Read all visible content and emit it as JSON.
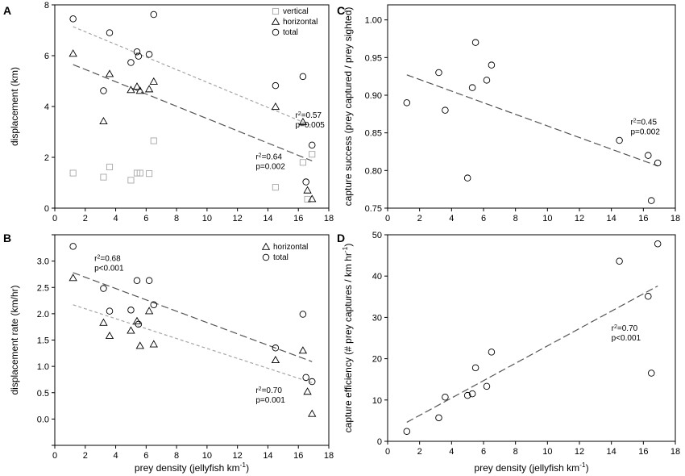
{
  "chart_data": [
    {
      "panel": "A",
      "type": "scatter",
      "xlabel": "",
      "ylabel": "displacement (km)",
      "xlim": [
        0,
        18
      ],
      "ylim": [
        0,
        8
      ],
      "xticks": [
        0,
        2,
        4,
        6,
        8,
        10,
        12,
        14,
        16,
        18
      ],
      "yticks": [
        0,
        2,
        4,
        6,
        8
      ],
      "legend": {
        "position": "top-right",
        "entries": [
          "vertical",
          "horizontal",
          "total"
        ]
      },
      "series": [
        {
          "name": "vertical",
          "marker": "square",
          "color": "#a6a6a6",
          "points": [
            [
              1.2,
              1.38
            ],
            [
              3.2,
              1.22
            ],
            [
              3.6,
              1.62
            ],
            [
              5.0,
              1.1
            ],
            [
              5.4,
              1.38
            ],
            [
              5.6,
              1.38
            ],
            [
              6.2,
              1.36
            ],
            [
              6.5,
              2.65
            ],
            [
              14.5,
              0.82
            ],
            [
              16.3,
              1.8
            ],
            [
              16.6,
              0.35
            ],
            [
              16.9,
              2.12
            ]
          ]
        },
        {
          "name": "horizontal",
          "marker": "triangle",
          "color": "#000000",
          "points": [
            [
              1.2,
              6.08
            ],
            [
              3.2,
              3.42
            ],
            [
              3.6,
              5.28
            ],
            [
              5.0,
              4.65
            ],
            [
              5.4,
              4.78
            ],
            [
              5.6,
              4.62
            ],
            [
              6.2,
              4.68
            ],
            [
              6.5,
              4.98
            ],
            [
              14.5,
              3.99
            ],
            [
              16.3,
              3.39
            ],
            [
              16.6,
              0.7
            ],
            [
              16.9,
              0.36
            ]
          ]
        },
        {
          "name": "total",
          "marker": "circle",
          "color": "#000000",
          "points": [
            [
              1.2,
              7.45
            ],
            [
              3.2,
              4.62
            ],
            [
              3.6,
              6.9
            ],
            [
              5.0,
              5.73
            ],
            [
              5.4,
              6.15
            ],
            [
              5.5,
              5.98
            ],
            [
              6.2,
              6.05
            ],
            [
              6.5,
              7.62
            ],
            [
              14.5,
              4.82
            ],
            [
              16.3,
              5.18
            ],
            [
              16.5,
              1.03
            ],
            [
              16.9,
              2.48
            ]
          ]
        }
      ],
      "fits": [
        {
          "series": "total",
          "x": [
            1.2,
            16.9
          ],
          "y": [
            7.14,
            3.24
          ],
          "color": "#a6a6a6",
          "dash": "4,3"
        },
        {
          "series": "horizontal",
          "x": [
            1.2,
            16.9
          ],
          "y": [
            5.65,
            1.86
          ],
          "color": "#555555",
          "dash": "9,4"
        }
      ],
      "annotations": [
        {
          "id": "a-fit-total",
          "at": [
            15.8,
            3.55
          ],
          "lines": [
            {
              "pre": "r",
              "sup": "2",
              "post": "=0.57"
            },
            {
              "pre": "p=0.005"
            }
          ]
        },
        {
          "id": "a-fit-horizontal",
          "at": [
            13.2,
            1.92
          ],
          "lines": [
            {
              "pre": "r",
              "sup": "2",
              "post": "=0.64"
            },
            {
              "pre": "p=0.002"
            }
          ]
        }
      ]
    },
    {
      "panel": "B",
      "type": "scatter",
      "xlabel": "prey density (jellyfish km-1)",
      "ylabel": "displacement rate (km/hr)",
      "xlim": [
        0,
        18
      ],
      "ylim": [
        -0.5,
        3.5
      ],
      "xticks": [
        0,
        2,
        4,
        6,
        8,
        10,
        12,
        14,
        16,
        18
      ],
      "yticks": [
        -0.5,
        0.0,
        0.5,
        1.0,
        1.5,
        2.0,
        2.5,
        3.0,
        3.5
      ],
      "yticklabels": [
        "",
        "0.0",
        "0.5",
        "1.0",
        "1.5",
        "2.0",
        "2.5",
        "3.0",
        ""
      ],
      "legend": {
        "position": "top-right",
        "entries": [
          "horizontal",
          "total"
        ]
      },
      "series": [
        {
          "name": "horizontal",
          "marker": "triangle",
          "color": "#000000",
          "points": [
            [
              1.2,
              2.68
            ],
            [
              3.2,
              1.83
            ],
            [
              3.6,
              1.58
            ],
            [
              5.0,
              1.68
            ],
            [
              5.4,
              1.86
            ],
            [
              5.6,
              1.39
            ],
            [
              6.2,
              2.05
            ],
            [
              6.5,
              1.42
            ],
            [
              14.5,
              1.12
            ],
            [
              16.3,
              1.3
            ],
            [
              16.6,
              0.52
            ],
            [
              16.9,
              0.1
            ]
          ]
        },
        {
          "name": "total",
          "marker": "circle",
          "color": "#000000",
          "points": [
            [
              1.2,
              3.28
            ],
            [
              3.2,
              2.48
            ],
            [
              3.6,
              2.05
            ],
            [
              5.0,
              2.07
            ],
            [
              5.4,
              2.63
            ],
            [
              5.5,
              1.8
            ],
            [
              6.2,
              2.63
            ],
            [
              6.5,
              2.17
            ],
            [
              14.5,
              1.35
            ],
            [
              16.3,
              1.99
            ],
            [
              16.5,
              0.79
            ],
            [
              16.9,
              0.71
            ]
          ]
        }
      ],
      "fits": [
        {
          "series": "total",
          "x": [
            1.2,
            16.9
          ],
          "y": [
            2.78,
            1.09
          ],
          "color": "#555555",
          "dash": "9,4"
        },
        {
          "series": "horizontal",
          "x": [
            1.2,
            16.9
          ],
          "y": [
            2.17,
            0.69
          ],
          "color": "#a6a6a6",
          "dash": "4,3"
        }
      ],
      "annotations": [
        {
          "id": "b-fit-total",
          "at": [
            2.6,
            3.0
          ],
          "lines": [
            {
              "pre": "r",
              "sup": "2",
              "post": "=0.68"
            },
            {
              "pre": "p<0.001"
            }
          ]
        },
        {
          "id": "b-fit-horizontal",
          "at": [
            13.2,
            0.5
          ],
          "lines": [
            {
              "pre": "r",
              "sup": "2",
              "post": "=0.70"
            },
            {
              "pre": "p=0.001"
            }
          ]
        }
      ]
    },
    {
      "panel": "C",
      "type": "scatter",
      "xlabel": "",
      "ylabel": "capture success (prey captured / prey sighted)",
      "xlim": [
        0,
        18
      ],
      "ylim": [
        0.75,
        1.02
      ],
      "xticks": [
        0,
        2,
        4,
        6,
        8,
        10,
        12,
        14,
        16,
        18
      ],
      "yticks": [
        0.75,
        0.8,
        0.85,
        0.9,
        0.95,
        1.0
      ],
      "yticklabels": [
        "0.75",
        "0.80",
        "0.85",
        "0.90",
        "0.95",
        "1.00"
      ],
      "series": [
        {
          "name": "capture success",
          "marker": "circle",
          "color": "#000000",
          "points": [
            [
              1.2,
              0.89
            ],
            [
              3.2,
              0.93
            ],
            [
              3.6,
              0.88
            ],
            [
              5.0,
              0.79
            ],
            [
              5.3,
              0.91
            ],
            [
              5.5,
              0.97
            ],
            [
              6.2,
              0.92
            ],
            [
              6.5,
              0.94
            ],
            [
              14.5,
              0.84
            ],
            [
              16.3,
              0.82
            ],
            [
              16.5,
              0.76
            ],
            [
              16.9,
              0.81
            ]
          ]
        }
      ],
      "fits": [
        {
          "series": "capture success",
          "x": [
            1.2,
            16.9
          ],
          "y": [
            0.927,
            0.806
          ],
          "color": "#555555",
          "dash": "9,4"
        }
      ],
      "annotations": [
        {
          "id": "c-fit",
          "at": [
            15.2,
            0.861
          ],
          "lines": [
            {
              "pre": "r",
              "sup": "2",
              "post": "=0.45"
            },
            {
              "pre": "p=0.002"
            }
          ]
        }
      ]
    },
    {
      "panel": "D",
      "type": "scatter",
      "xlabel": "prey density (jellyfish km-1)",
      "ylabel": "capture efficiency (# prey captures / km hr-1)",
      "xlim": [
        0,
        18
      ],
      "ylim": [
        0,
        50
      ],
      "xticks": [
        0,
        2,
        4,
        6,
        8,
        10,
        12,
        14,
        16,
        18
      ],
      "yticks": [
        0,
        10,
        20,
        30,
        40,
        50
      ],
      "series": [
        {
          "name": "capture efficiency",
          "marker": "circle",
          "color": "#000000",
          "points": [
            [
              1.2,
              2.4
            ],
            [
              3.2,
              5.7
            ],
            [
              3.6,
              10.7
            ],
            [
              5.0,
              11.1
            ],
            [
              5.3,
              11.5
            ],
            [
              5.5,
              17.8
            ],
            [
              6.2,
              13.3
            ],
            [
              6.5,
              21.6
            ],
            [
              14.5,
              43.6
            ],
            [
              16.3,
              35.1
            ],
            [
              16.5,
              16.5
            ],
            [
              16.9,
              47.8
            ]
          ]
        }
      ],
      "fits": [
        {
          "series": "capture efficiency",
          "x": [
            1.2,
            16.9
          ],
          "y": [
            4.6,
            37.6
          ],
          "color": "#555555",
          "dash": "9,4"
        }
      ],
      "annotations": [
        {
          "id": "d-fit",
          "at": [
            14.0,
            26.8
          ],
          "lines": [
            {
              "pre": "r",
              "sup": "2",
              "post": "=0.70"
            },
            {
              "pre": "p<0.001"
            }
          ]
        }
      ]
    }
  ]
}
